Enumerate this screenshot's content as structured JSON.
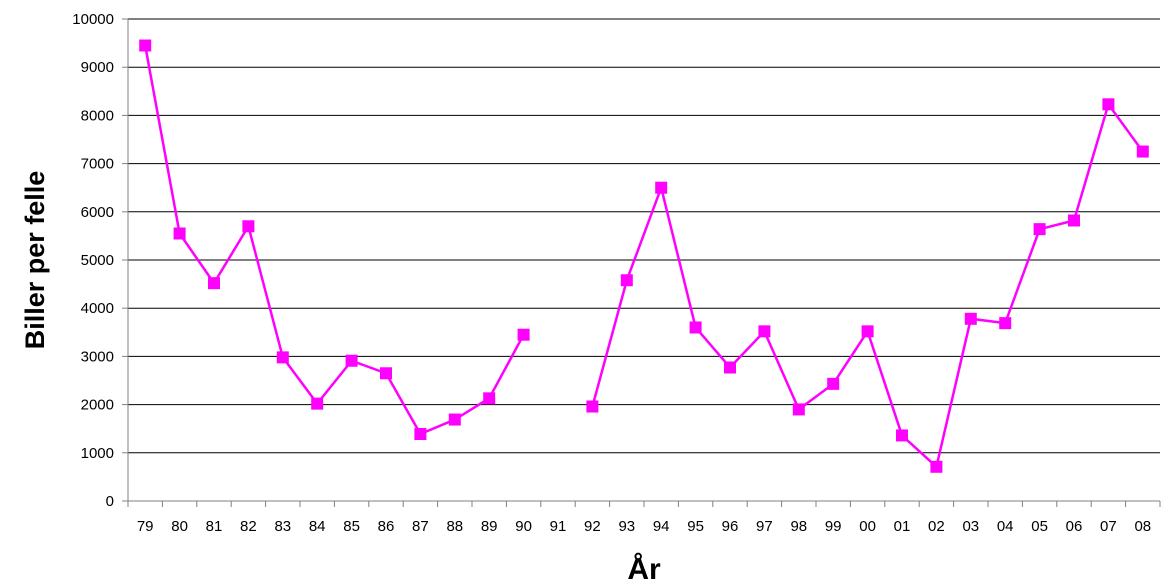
{
  "chart_data": {
    "type": "line",
    "title": "",
    "xlabel": "År",
    "ylabel": "Biller per felle",
    "ylim": [
      0,
      10000
    ],
    "yticks": [
      "0",
      "1000",
      "2000",
      "3000",
      "4000",
      "5000",
      "6000",
      "7000",
      "8000",
      "9000",
      "10000"
    ],
    "categories": [
      "79",
      "80",
      "81",
      "82",
      "83",
      "84",
      "85",
      "86",
      "87",
      "88",
      "89",
      "90",
      "91",
      "92",
      "93",
      "94",
      "95",
      "96",
      "97",
      "98",
      "99",
      "00",
      "01",
      "02",
      "03",
      "04",
      "05",
      "06",
      "07",
      "08"
    ],
    "series": [
      {
        "values": [
          9450,
          5550,
          4520,
          5700,
          2980,
          2020,
          2910,
          2650,
          1390,
          1690,
          2130,
          3450,
          null,
          1960,
          4580,
          6500,
          3600,
          2770,
          3520,
          1900,
          2430,
          3520,
          1360,
          710,
          3780,
          3690,
          5640,
          5820,
          8230,
          7250
        ]
      }
    ],
    "grid": true,
    "legend": "none",
    "colors": {
      "series": "#ff00ff",
      "grid": "#000000",
      "axis": "#808080"
    },
    "marker": "square"
  }
}
